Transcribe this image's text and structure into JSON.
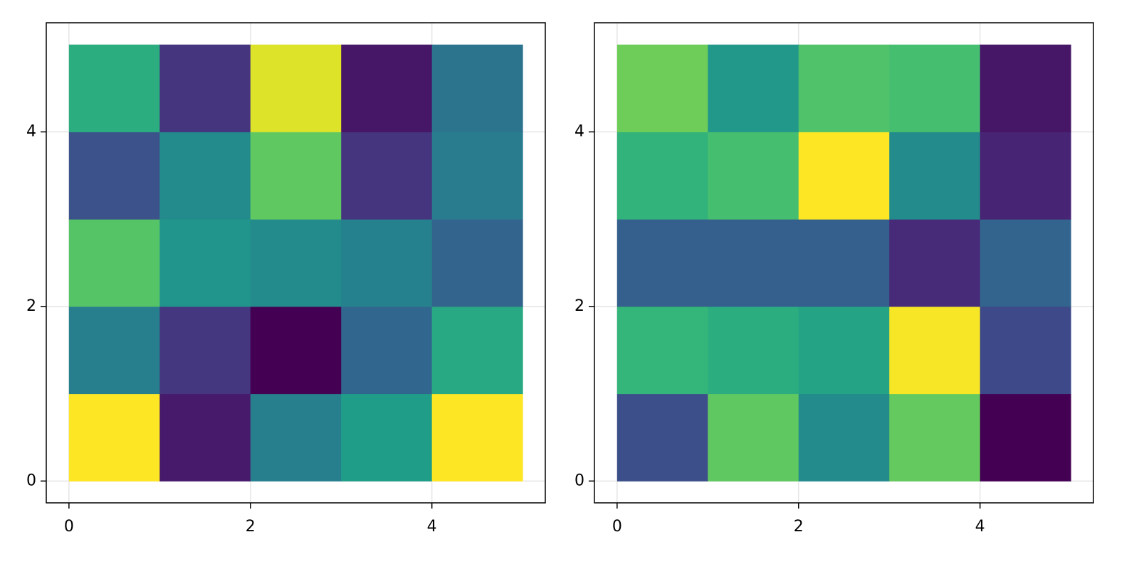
{
  "chart_data": [
    {
      "type": "heatmap",
      "colormap": "viridis",
      "grid": true,
      "x_edges": [
        0,
        1,
        2,
        3,
        4,
        5
      ],
      "y_edges": [
        0,
        1,
        2,
        3,
        4,
        5
      ],
      "z": [
        [
          1.0,
          0.07,
          0.43,
          0.55,
          1.0
        ],
        [
          0.43,
          0.16,
          0.0,
          0.33,
          0.6
        ],
        [
          0.73,
          0.52,
          0.48,
          0.44,
          0.32
        ],
        [
          0.25,
          0.48,
          0.75,
          0.15,
          0.42
        ],
        [
          0.62,
          0.15,
          0.95,
          0.06,
          0.38
        ]
      ],
      "xlim": [
        -0.25,
        5.25
      ],
      "ylim": [
        -0.25,
        5.25
      ],
      "xticks": [
        0,
        2,
        4
      ],
      "yticks": [
        0,
        2,
        4
      ]
    },
    {
      "type": "heatmap",
      "colormap": "viridis",
      "grid": true,
      "x_edges": [
        0,
        1,
        2,
        3,
        4,
        5
      ],
      "y_edges": [
        0,
        1,
        2,
        3,
        4,
        5
      ],
      "z": [
        [
          0.24,
          0.75,
          0.48,
          0.76,
          0.0
        ],
        [
          0.66,
          0.62,
          0.58,
          0.99,
          0.22
        ],
        [
          0.3,
          0.3,
          0.3,
          0.12,
          0.32
        ],
        [
          0.65,
          0.7,
          1.0,
          0.48,
          0.1
        ],
        [
          0.78,
          0.53,
          0.72,
          0.7,
          0.06
        ]
      ],
      "xlim": [
        -0.25,
        5.25
      ],
      "ylim": [
        -0.25,
        5.25
      ],
      "xticks": [
        0,
        2,
        4
      ],
      "yticks": [
        0,
        2,
        4
      ]
    }
  ]
}
